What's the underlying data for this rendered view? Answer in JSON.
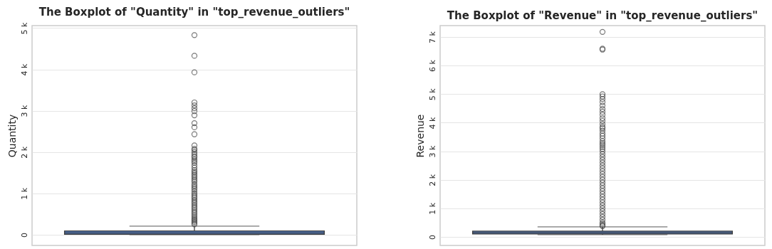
{
  "chart_data": [
    {
      "type": "box",
      "title": "The Boxplot of \"Quantity\" in \"top_revenue_outliers\"",
      "ylabel": "Quantity",
      "categories": [
        null
      ],
      "ylim": [
        -260,
        5060
      ],
      "yticks": [
        0,
        {
          "value": 1000,
          "label": "1 k"
        },
        {
          "value": 2000,
          "label": "2 k"
        },
        {
          "value": 3000,
          "label": "3 k"
        },
        {
          "value": 4000,
          "label": "4 k"
        },
        {
          "value": 5000,
          "label": "5 k"
        }
      ],
      "grid": "y",
      "tick_labels": "y",
      "color": "#4c72b0",
      "boxes": [
        {
          "low": 0,
          "q1": 10,
          "median": 40,
          "q3": 90,
          "high": 206,
          "outliers": [
            4830,
            4330,
            3930,
            3200,
            3130,
            3060,
            2990,
            2890,
            2700,
            2600,
            2430,
            2160,
            2080,
            2050,
            2000,
            1950,
            1900,
            1870,
            1820,
            1780,
            1740,
            1680,
            1620,
            1560,
            1520,
            1480,
            1440,
            1400,
            1360,
            1320,
            1280,
            1220,
            1180,
            1140,
            1100,
            1050,
            1000,
            960,
            920,
            880,
            840,
            800,
            760,
            720,
            680,
            640,
            600,
            560,
            520,
            480,
            440,
            400,
            370,
            340,
            310,
            280,
            250
          ]
        }
      ]
    },
    {
      "type": "box",
      "title": "The Boxplot of \"Revenue\" in \"top_revenue_outliers\"",
      "ylabel": "Revenue",
      "categories": [
        null
      ],
      "ylim": [
        -300,
        7400
      ],
      "yticks": [
        0,
        {
          "value": 1000,
          "label": "1 k"
        },
        {
          "value": 2000,
          "label": "2 k"
        },
        {
          "value": 3000,
          "label": "3 k"
        },
        {
          "value": 4000,
          "label": "4 k"
        },
        {
          "value": 5000,
          "label": "5 k"
        },
        {
          "value": 6000,
          "label": "6 k"
        },
        {
          "value": 7000,
          "label": "7 k"
        }
      ],
      "grid": "y",
      "tick_labels": "y",
      "color": "#4c72b0",
      "boxes": [
        {
          "low": 75,
          "q1": 100,
          "median": 150,
          "q3": 200,
          "high": 350,
          "outliers": [
            7180,
            6590,
            6560,
            5000,
            4920,
            4830,
            4720,
            4600,
            4480,
            4380,
            4280,
            4160,
            4060,
            3950,
            3850,
            3800,
            3720,
            3620,
            3540,
            3450,
            3350,
            3280,
            3220,
            3150,
            3080,
            3000,
            2900,
            2800,
            2700,
            2600,
            2500,
            2400,
            2300,
            2200,
            2100,
            2000,
            1900,
            1800,
            1700,
            1600,
            1500,
            1400,
            1300,
            1200,
            1100,
            1000,
            900,
            800,
            700,
            600,
            500,
            450,
            400,
            380
          ]
        }
      ]
    }
  ]
}
